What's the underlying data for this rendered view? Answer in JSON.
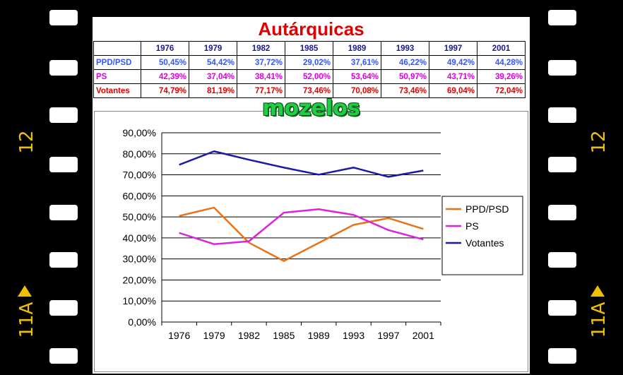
{
  "film": {
    "label_left": "12",
    "label_right": "12",
    "label_bottom_left": "11A",
    "label_bottom_right": "11A"
  },
  "table": {
    "title": "Autárquicas",
    "headers": [
      "1976",
      "1979",
      "1982",
      "1985",
      "1989",
      "1993",
      "1997",
      "2001"
    ],
    "rows": [
      {
        "label": "PPD/PSD",
        "values": [
          "50,45%",
          "54,42%",
          "37,72%",
          "29,02%",
          "37,61%",
          "46,22%",
          "49,42%",
          "44,28%"
        ]
      },
      {
        "label": "PS",
        "values": [
          "42,39%",
          "37,04%",
          "38,41%",
          "52,00%",
          "53,64%",
          "50,97%",
          "43,71%",
          "39,26%"
        ]
      },
      {
        "label": "Votantes",
        "values": [
          "74,79%",
          "81,19%",
          "77,17%",
          "73,46%",
          "70,08%",
          "73,46%",
          "69,04%",
          "72,04%"
        ]
      }
    ]
  },
  "chart_title": "mozelos",
  "chart_data": {
    "type": "line",
    "title": "mozelos",
    "categories": [
      "1976",
      "1979",
      "1982",
      "1985",
      "1989",
      "1993",
      "1997",
      "2001"
    ],
    "series": [
      {
        "name": "PPD/PSD",
        "color": "#e8741a",
        "values": [
          50.45,
          54.42,
          37.72,
          29.02,
          37.61,
          46.22,
          49.42,
          44.28
        ]
      },
      {
        "name": "PS",
        "color": "#dd22dd",
        "values": [
          42.39,
          37.04,
          38.41,
          52.0,
          53.64,
          50.97,
          43.71,
          39.26
        ]
      },
      {
        "name": "Votantes",
        "color": "#1a1aaa",
        "values": [
          74.79,
          81.19,
          77.17,
          73.46,
          70.08,
          73.46,
          69.04,
          72.04
        ]
      }
    ],
    "yticks": [
      "0,00%",
      "10,00%",
      "20,00%",
      "30,00%",
      "40,00%",
      "50,00%",
      "60,00%",
      "70,00%",
      "80,00%",
      "90,00%"
    ],
    "ylim": [
      0,
      90
    ],
    "grid": true,
    "legend": "right"
  }
}
